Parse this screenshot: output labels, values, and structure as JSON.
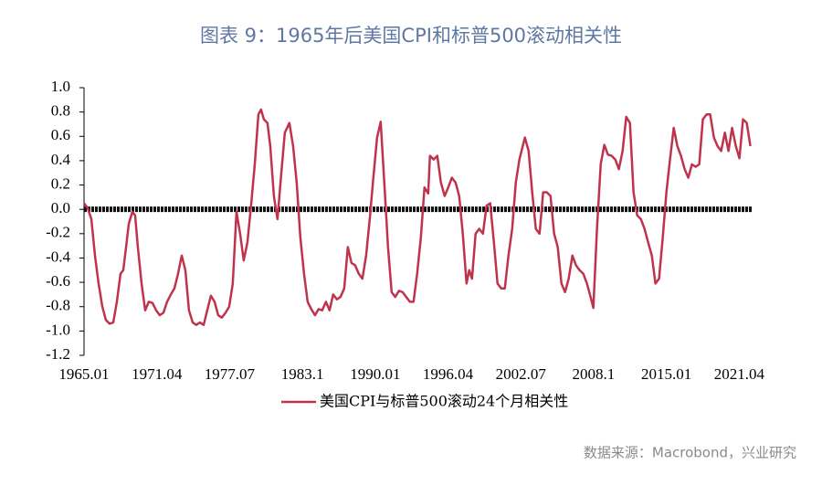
{
  "chart_data": {
    "type": "line",
    "title": "图表 9：1965年后美国CPI和标普500滚动相关性",
    "source": "数据来源：Macrobond，兴业研究",
    "x": [
      1965.0,
      1965.31,
      1965.63,
      1965.94,
      1966.25,
      1966.57,
      1966.88,
      1967.19,
      1967.51,
      1967.82,
      1968.13,
      1968.37,
      1968.61,
      1968.84,
      1969.15,
      1969.39,
      1969.62,
      1969.94,
      1970.25,
      1970.56,
      1970.88,
      1971.19,
      1971.5,
      1971.82,
      1972.13,
      1972.45,
      1972.76,
      1973.07,
      1973.39,
      1973.7,
      1974.01,
      1974.33,
      1974.64,
      1974.95,
      1975.27,
      1975.58,
      1975.89,
      1976.21,
      1976.52,
      1976.83,
      1977.15,
      1977.46,
      1977.77,
      1978.09,
      1978.4,
      1978.71,
      1979.03,
      1979.34,
      1979.66,
      1979.97,
      1980.2,
      1980.44,
      1980.75,
      1980.99,
      1981.3,
      1981.61,
      1981.93,
      1982.24,
      1982.63,
      1982.95,
      1983.26,
      1983.57,
      1983.89,
      1984.2,
      1984.51,
      1984.83,
      1985.14,
      1985.45,
      1985.77,
      1986.08,
      1986.39,
      1986.71,
      1987.02,
      1987.34,
      1987.65,
      1987.96,
      1988.28,
      1988.59,
      1988.9,
      1989.22,
      1989.53,
      1989.84,
      1990.16,
      1990.47,
      1990.78,
      1991.1,
      1991.41,
      1991.72,
      1992.04,
      1992.35,
      1992.66,
      1992.98,
      1993.29,
      1993.6,
      1993.92,
      1994.23,
      1994.55,
      1994.7,
      1995.02,
      1995.33,
      1995.64,
      1995.96,
      1996.27,
      1996.58,
      1996.9,
      1997.21,
      1997.52,
      1997.84,
      1998.07,
      1998.31,
      1998.62,
      1998.93,
      1999.25,
      1999.56,
      1999.87,
      2000.19,
      2000.5,
      2000.82,
      2001.13,
      2001.44,
      2001.76,
      2002.07,
      2002.38,
      2002.85,
      2003.17,
      2003.48,
      2003.79,
      2004.11,
      2004.42,
      2004.73,
      2005.05,
      2005.36,
      2005.67,
      2005.99,
      2006.3,
      2006.61,
      2006.93,
      2007.24,
      2007.55,
      2007.87,
      2008.18,
      2008.49,
      2008.73,
      2009.04,
      2009.36,
      2009.67,
      2009.98,
      2010.3,
      2010.61,
      2010.92,
      2011.24,
      2011.55,
      2011.87,
      2012.18,
      2012.49,
      2012.81,
      2013.12,
      2013.43,
      2013.75,
      2014.06,
      2014.37,
      2014.69,
      2015.0,
      2015.31,
      2015.63,
      2015.94,
      2016.25,
      2016.57,
      2016.88,
      2017.19,
      2017.51,
      2017.82,
      2018.13,
      2018.45,
      2018.76,
      2019.08,
      2019.39,
      2019.7,
      2020.02,
      2020.33,
      2020.64,
      2020.96,
      2021.27,
      2021.58,
      2021.9,
      2022.21
    ],
    "series": [
      {
        "name": "美国CPI与标普500滚动24个月相关性",
        "color": "#c0334d",
        "values": [
          0.05,
          0.01,
          -0.08,
          -0.38,
          -0.61,
          -0.8,
          -0.91,
          -0.94,
          -0.93,
          -0.76,
          -0.53,
          -0.5,
          -0.31,
          -0.12,
          -0.02,
          -0.05,
          -0.31,
          -0.61,
          -0.83,
          -0.76,
          -0.77,
          -0.83,
          -0.87,
          -0.85,
          -0.76,
          -0.7,
          -0.65,
          -0.53,
          -0.38,
          -0.5,
          -0.83,
          -0.93,
          -0.95,
          -0.93,
          -0.95,
          -0.83,
          -0.71,
          -0.76,
          -0.87,
          -0.89,
          -0.85,
          -0.8,
          -0.61,
          -0.02,
          -0.2,
          -0.42,
          -0.27,
          0.03,
          0.37,
          0.78,
          0.82,
          0.74,
          0.71,
          0.52,
          0.11,
          -0.08,
          0.29,
          0.63,
          0.71,
          0.52,
          0.22,
          -0.23,
          -0.53,
          -0.76,
          -0.82,
          -0.87,
          -0.82,
          -0.83,
          -0.76,
          -0.83,
          -0.7,
          -0.74,
          -0.72,
          -0.65,
          -0.31,
          -0.44,
          -0.46,
          -0.53,
          -0.57,
          -0.38,
          -0.08,
          0.26,
          0.59,
          0.72,
          0.22,
          -0.31,
          -0.68,
          -0.72,
          -0.67,
          -0.68,
          -0.72,
          -0.76,
          -0.76,
          -0.53,
          -0.23,
          0.18,
          0.13,
          0.44,
          0.41,
          0.44,
          0.22,
          0.11,
          0.18,
          0.26,
          0.22,
          0.11,
          -0.2,
          -0.61,
          -0.5,
          -0.57,
          -0.2,
          -0.16,
          -0.2,
          0.03,
          0.05,
          -0.27,
          -0.61,
          -0.65,
          -0.65,
          -0.38,
          -0.16,
          0.22,
          0.41,
          0.59,
          0.48,
          0.14,
          -0.16,
          -0.2,
          0.14,
          0.14,
          0.11,
          -0.2,
          -0.31,
          -0.61,
          -0.68,
          -0.57,
          -0.38,
          -0.46,
          -0.5,
          -0.53,
          -0.61,
          -0.72,
          -0.81,
          -0.16,
          0.37,
          0.53,
          0.45,
          0.44,
          0.41,
          0.33,
          0.48,
          0.76,
          0.71,
          0.14,
          -0.05,
          -0.08,
          -0.16,
          -0.27,
          -0.38,
          -0.61,
          -0.57,
          -0.23,
          0.14,
          0.41,
          0.67,
          0.52,
          0.44,
          0.33,
          0.26,
          0.37,
          0.35,
          0.37,
          0.74,
          0.78,
          0.78,
          0.59,
          0.52,
          0.48,
          0.63,
          0.48,
          0.67,
          0.52,
          0.42,
          0.74,
          0.71,
          0.52
        ]
      }
    ],
    "xlim": [
      1965,
      2022.4
    ],
    "xticks": [
      {
        "value": 1965.0,
        "label": "1965.01"
      },
      {
        "value": 1971.25,
        "label": "1971.04"
      },
      {
        "value": 1977.5,
        "label": "1977.07"
      },
      {
        "value": 1983.75,
        "label": "1983.1"
      },
      {
        "value": 1990.0,
        "label": "1990.01"
      },
      {
        "value": 1996.25,
        "label": "1996.04"
      },
      {
        "value": 2002.5,
        "label": "2002.07"
      },
      {
        "value": 2008.75,
        "label": "2008.1"
      },
      {
        "value": 2015.0,
        "label": "2015.01"
      },
      {
        "value": 2021.25,
        "label": "2021.04"
      }
    ],
    "ylim": [
      -1.2,
      1.0
    ],
    "yticks": [
      {
        "value": 1,
        "label": "1.0"
      },
      0.8,
      0.6,
      0.4,
      0.2,
      {
        "value": 0,
        "label": "0.0"
      },
      -0.2,
      -0.4,
      -0.6,
      -0.8,
      {
        "value": -1,
        "label": "-1.0"
      },
      -1.2
    ]
  }
}
